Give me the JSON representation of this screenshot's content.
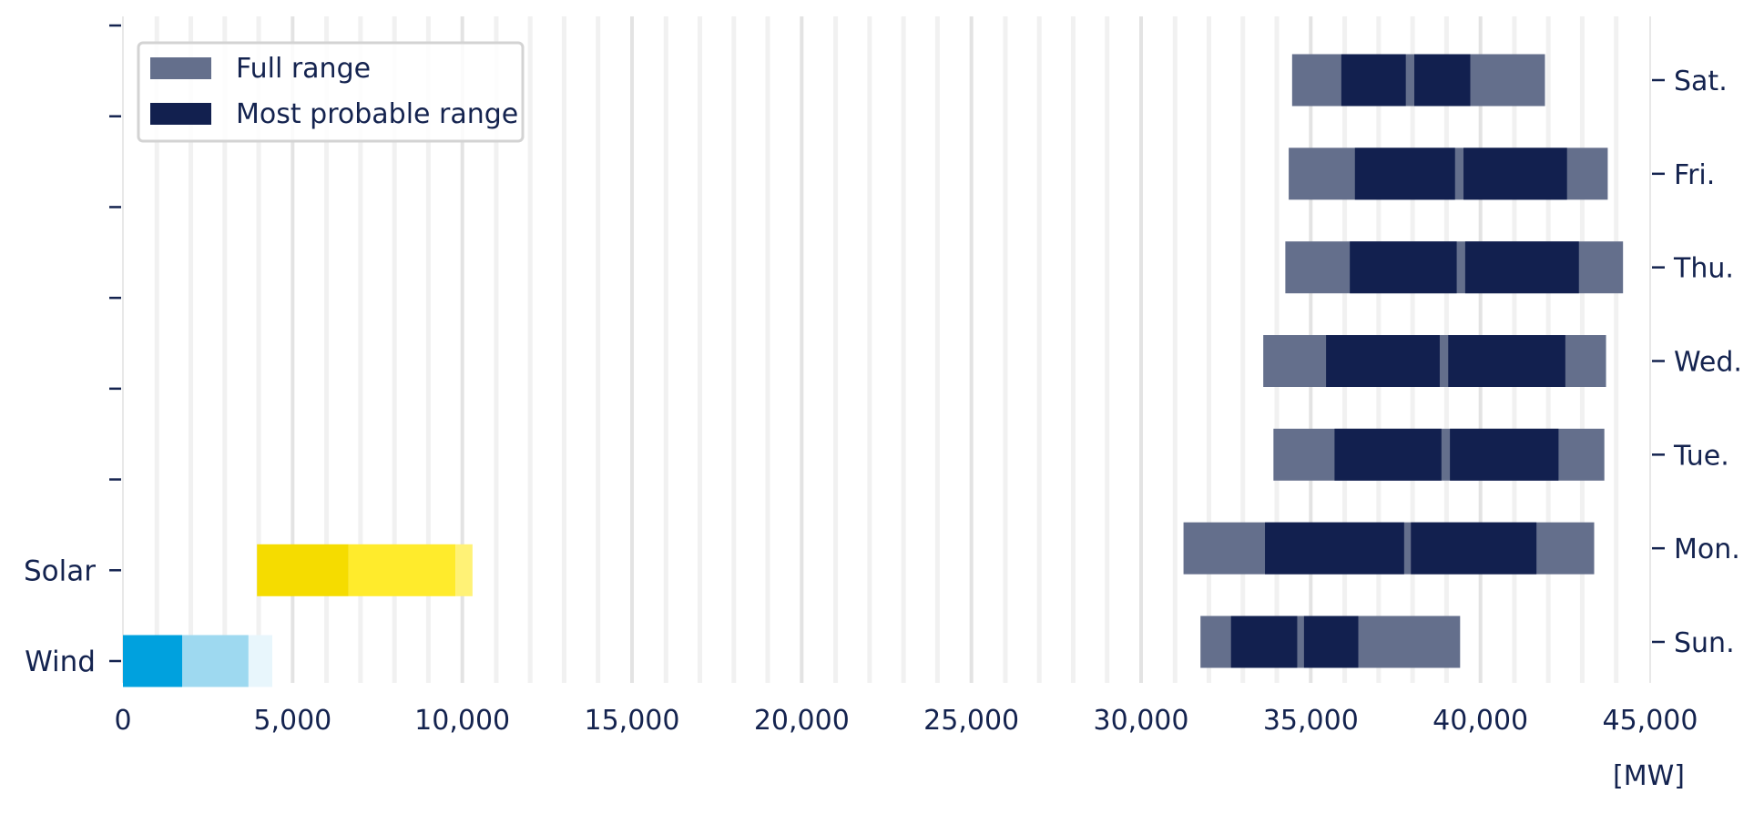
{
  "chart_data": {
    "type": "bar",
    "orientation": "horizontal",
    "x_axis": {
      "min": 0,
      "max": 45000,
      "ticks": [
        0,
        5000,
        10000,
        15000,
        20000,
        25000,
        30000,
        35000,
        40000,
        45000
      ],
      "tick_labels": [
        "0",
        "5,000",
        "10,000",
        "15,000",
        "20,000",
        "25,000",
        "30,000",
        "35,000",
        "40,000",
        "45,000"
      ],
      "unit": "[MW]",
      "grid": true
    },
    "legend": {
      "placement": "top-left",
      "items": [
        {
          "label": "Full range",
          "color": "#646f8c"
        },
        {
          "label": "Most probable range",
          "color": "#12204f"
        }
      ]
    },
    "left_categories": [
      {
        "name": "Solar",
        "segments": [
          {
            "from": 3950,
            "to": 6650,
            "color": "#f5dc00"
          },
          {
            "from": 6650,
            "to": 9800,
            "color": "#ffeb2c"
          },
          {
            "from": 9800,
            "to": 10300,
            "color": "#fff276"
          }
        ]
      },
      {
        "name": "Wind",
        "segments": [
          {
            "from": 0,
            "to": 1750,
            "color": "#00a1de"
          },
          {
            "from": 1750,
            "to": 3700,
            "color": "#9ed9f0"
          },
          {
            "from": 3700,
            "to": 4400,
            "color": "#e8f6fc"
          }
        ]
      }
    ],
    "days": [
      {
        "name": "Sat.",
        "full": [
          34450,
          41900
        ],
        "probable": [
          [
            35900,
            37800
          ],
          [
            38050,
            39700
          ]
        ]
      },
      {
        "name": "Fri.",
        "full": [
          34350,
          43750
        ],
        "probable": [
          [
            36300,
            39250
          ],
          [
            39500,
            42550
          ]
        ]
      },
      {
        "name": "Thu.",
        "full": [
          34250,
          44200
        ],
        "probable": [
          [
            36150,
            39300
          ],
          [
            39550,
            42900
          ]
        ]
      },
      {
        "name": "Wed.",
        "full": [
          33600,
          43700
        ],
        "probable": [
          [
            35450,
            38800
          ],
          [
            39050,
            42500
          ]
        ]
      },
      {
        "name": "Tue.",
        "full": [
          33900,
          43650
        ],
        "probable": [
          [
            35700,
            38850
          ],
          [
            39100,
            42300
          ]
        ]
      },
      {
        "name": "Mon.",
        "full": [
          31250,
          43350
        ],
        "probable": [
          [
            33650,
            37750
          ],
          [
            37950,
            41650
          ]
        ]
      },
      {
        "name": "Sun.",
        "full": [
          31750,
          39400
        ],
        "probable": [
          [
            32650,
            34600
          ],
          [
            34800,
            36400
          ]
        ]
      }
    ]
  }
}
